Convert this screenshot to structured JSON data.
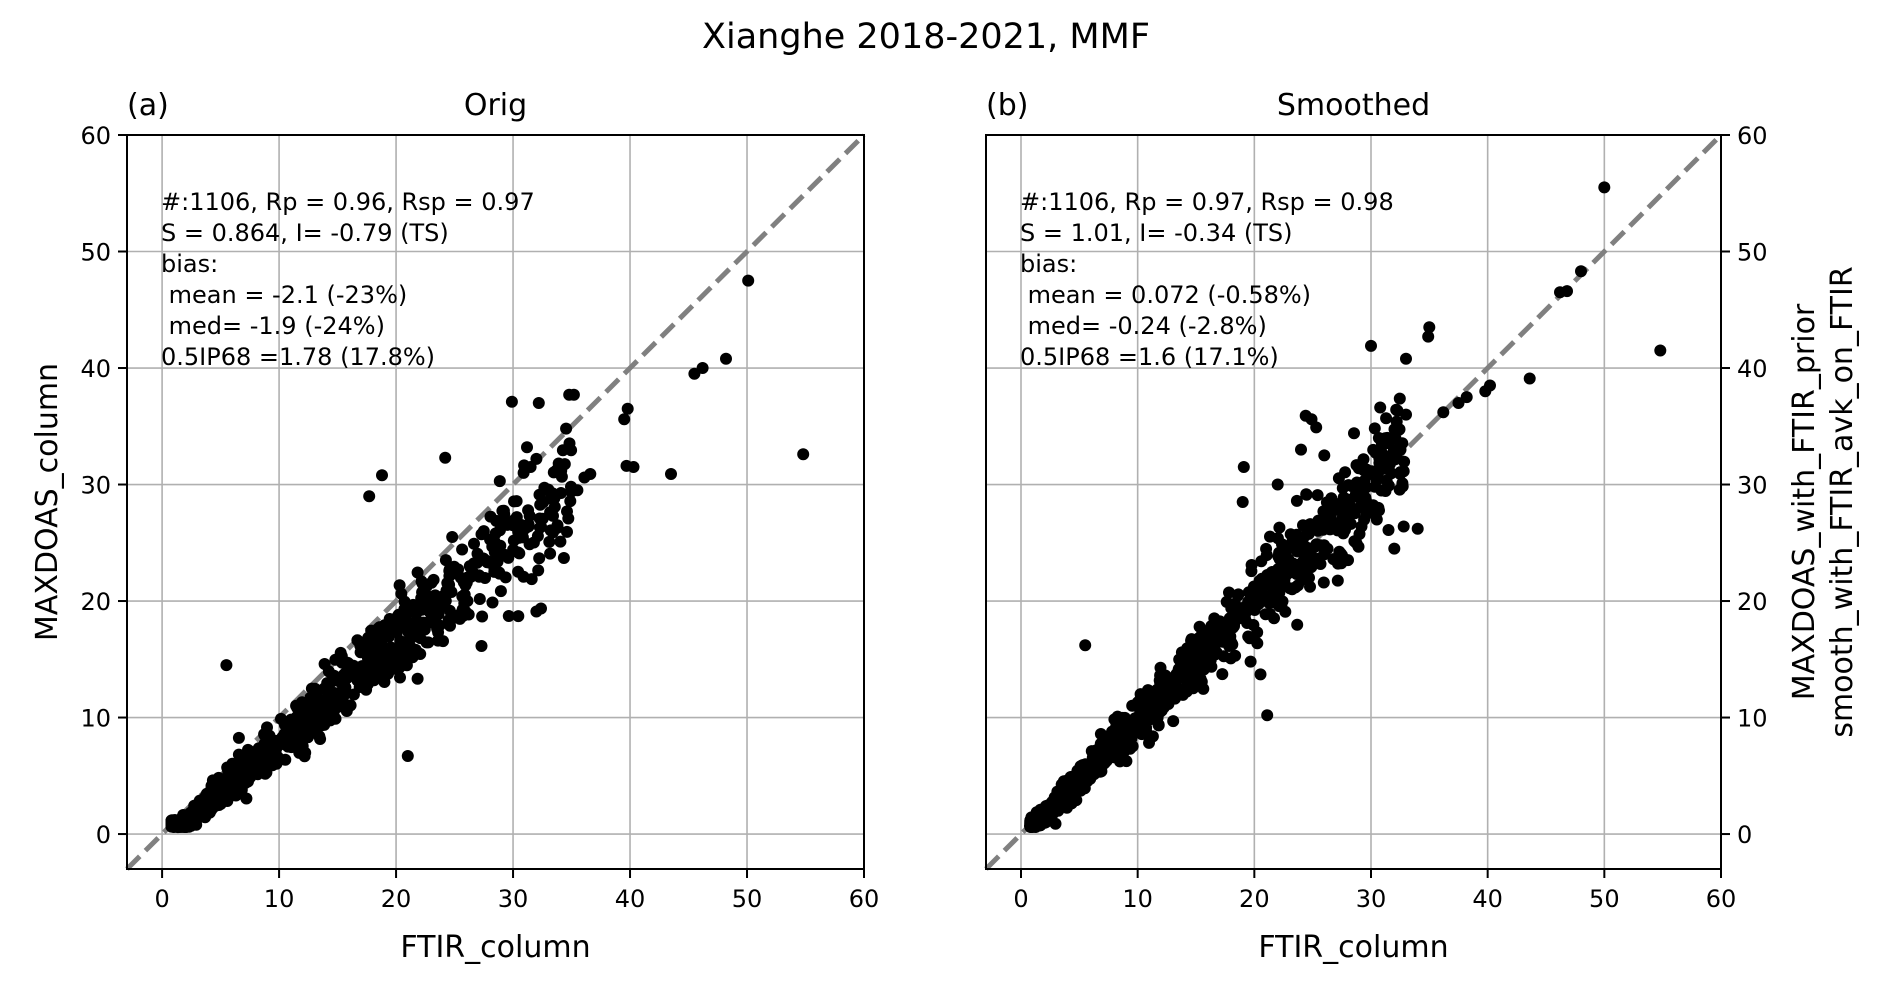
{
  "figure": {
    "title": "Xianghe 2018-2021, MMF"
  },
  "chart_data": [
    {
      "type": "scatter",
      "panel_label": "(a)",
      "title": "Orig",
      "xlabel": "FTIR_column",
      "ylabel": "MAXDOAS_column",
      "ylabel_side": "left",
      "xlim": [
        -3,
        60
      ],
      "ylim": [
        -3,
        60
      ],
      "xticks": [
        0,
        10,
        20,
        30,
        40,
        50,
        60
      ],
      "yticks": [
        0,
        10,
        20,
        30,
        40,
        50,
        60
      ],
      "grid": true,
      "reference_line": "1:1 dashed grey",
      "annotation": [
        "#:1106, Rp = 0.96, Rsp = 0.97",
        "S = 0.864, I= -0.79 (TS)",
        "bias:",
        " mean = -2.1 (-23%)",
        " med= -1.9 (-24%)",
        "0.5IP68 =1.78 (17.8%)"
      ],
      "outliers": [
        [
          50.1,
          47.5
        ],
        [
          45.5,
          39.5
        ],
        [
          46.2,
          40.0
        ],
        [
          48.2,
          40.8
        ],
        [
          54.8,
          32.6
        ],
        [
          39.5,
          35.6
        ],
        [
          39.8,
          36.5
        ],
        [
          43.5,
          30.9
        ],
        [
          39.7,
          31.6
        ],
        [
          40.3,
          31.5
        ],
        [
          29.9,
          37.1
        ],
        [
          32.2,
          37.0
        ],
        [
          34.8,
          37.7
        ],
        [
          35.2,
          37.7
        ],
        [
          30.9,
          31.0
        ],
        [
          31.5,
          31.5
        ],
        [
          32.0,
          32.2
        ],
        [
          24.2,
          32.3
        ],
        [
          18.8,
          30.8
        ],
        [
          17.7,
          29.0
        ],
        [
          36.1,
          30.6
        ],
        [
          36.6,
          30.9
        ],
        [
          30.0,
          26.5
        ],
        [
          32.3,
          26.3
        ],
        [
          33.8,
          26.5
        ],
        [
          32.0,
          19.1
        ],
        [
          26.1,
          20.0
        ],
        [
          5.5,
          14.5
        ],
        [
          21.0,
          6.7
        ],
        [
          35.5,
          29.5
        ],
        [
          27.5,
          26.0
        ],
        [
          29.2,
          24.0
        ],
        [
          24.8,
          25.5
        ],
        [
          26.3,
          23.0
        ],
        [
          28.4,
          22.5
        ]
      ],
      "bulk_points": {
        "count": 1106,
        "relation": "y ≈ 0.864·x − 0.79",
        "x_range": [
          0.8,
          35
        ],
        "spread": 1.8
      }
    },
    {
      "type": "scatter",
      "panel_label": "(b)",
      "title": "Smoothed",
      "xlabel": "FTIR_column",
      "ylabel": "MAXDOAS_with_FTIR_prior\nsmooth_with_FTIR_avk_on_FTIR",
      "ylabel_side": "right",
      "xlim": [
        -3,
        60
      ],
      "ylim": [
        -3,
        60
      ],
      "xticks": [
        0,
        10,
        20,
        30,
        40,
        50,
        60
      ],
      "yticks": [
        0,
        10,
        20,
        30,
        40,
        50,
        60
      ],
      "grid": true,
      "reference_line": "1:1 dashed grey",
      "annotation": [
        "#:1106, Rp = 0.97, Rsp = 0.98",
        "S = 1.01, I= -0.34 (TS)",
        "bias:",
        " mean = 0.072 (-0.58%)",
        " med= -0.24 (-2.8%)",
        "0.5IP68 =1.6 (17.1%)"
      ],
      "outliers": [
        [
          50.0,
          55.5
        ],
        [
          54.8,
          41.5
        ],
        [
          46.2,
          46.5
        ],
        [
          46.8,
          46.6
        ],
        [
          48.0,
          48.3
        ],
        [
          43.6,
          39.1
        ],
        [
          39.8,
          38.0
        ],
        [
          40.2,
          38.5
        ],
        [
          38.2,
          37.5
        ],
        [
          35.0,
          43.5
        ],
        [
          34.9,
          42.7
        ],
        [
          30.0,
          41.9
        ],
        [
          33.0,
          40.8
        ],
        [
          36.2,
          36.2
        ],
        [
          37.5,
          37.0
        ],
        [
          24.4,
          35.9
        ],
        [
          24.9,
          35.6
        ],
        [
          25.3,
          34.9
        ],
        [
          24.0,
          33.0
        ],
        [
          26.0,
          32.5
        ],
        [
          19.1,
          31.5
        ],
        [
          32.5,
          30.9
        ],
        [
          32.2,
          35.4
        ],
        [
          33.0,
          36.0
        ],
        [
          31.4,
          34.0
        ],
        [
          32.8,
          26.4
        ],
        [
          31.5,
          26.1
        ],
        [
          30.5,
          27.0
        ],
        [
          34.0,
          26.2
        ],
        [
          32.0,
          24.5
        ],
        [
          21.1,
          10.2
        ],
        [
          5.5,
          16.2
        ],
        [
          26.0,
          24.5
        ],
        [
          19.0,
          28.5
        ],
        [
          22.0,
          30.0
        ]
      ],
      "bulk_points": {
        "count": 1106,
        "relation": "y ≈ 1.01·x − 0.34",
        "x_range": [
          0.8,
          33
        ],
        "spread": 1.6
      }
    }
  ]
}
